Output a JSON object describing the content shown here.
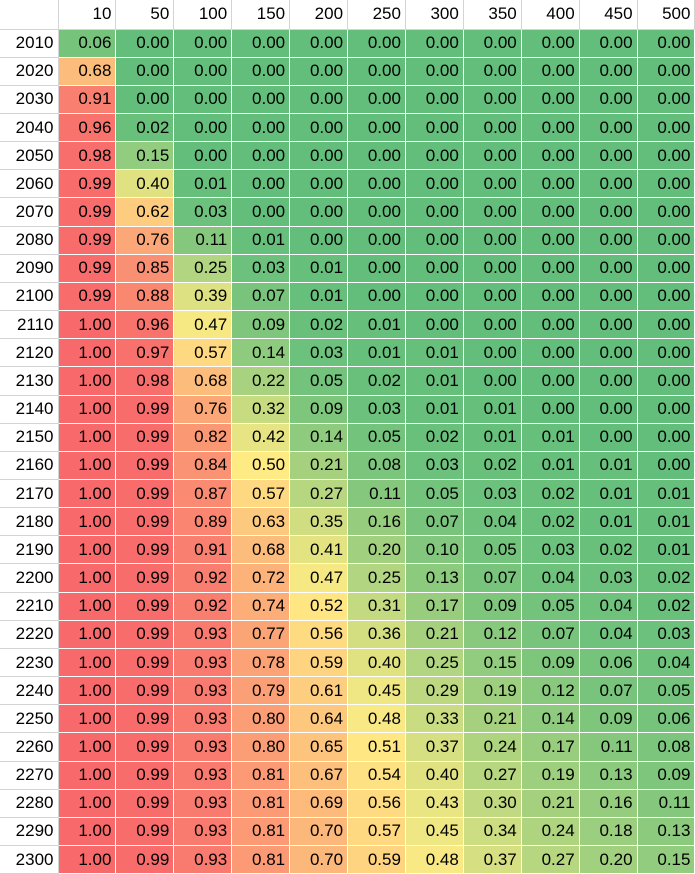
{
  "chart_data": {
    "type": "heatmap",
    "color_scale": {
      "low": "#63be7b",
      "mid": "#ffeb84",
      "high": "#f8696b"
    },
    "columns": [
      "10",
      "50",
      "100",
      "150",
      "200",
      "250",
      "300",
      "350",
      "400",
      "450",
      "500"
    ],
    "rows": [
      "2010",
      "2020",
      "2030",
      "2040",
      "2050",
      "2060",
      "2070",
      "2080",
      "2090",
      "2100",
      "2110",
      "2120",
      "2130",
      "2140",
      "2150",
      "2160",
      "2170",
      "2180",
      "2190",
      "2200",
      "2210",
      "2220",
      "2230",
      "2240",
      "2250",
      "2260",
      "2270",
      "2280",
      "2290",
      "2300"
    ],
    "values": [
      [
        "0.06",
        "0.00",
        "0.00",
        "0.00",
        "0.00",
        "0.00",
        "0.00",
        "0.00",
        "0.00",
        "0.00",
        "0.00"
      ],
      [
        "0.68",
        "0.00",
        "0.00",
        "0.00",
        "0.00",
        "0.00",
        "0.00",
        "0.00",
        "0.00",
        "0.00",
        "0.00"
      ],
      [
        "0.91",
        "0.00",
        "0.00",
        "0.00",
        "0.00",
        "0.00",
        "0.00",
        "0.00",
        "0.00",
        "0.00",
        "0.00"
      ],
      [
        "0.96",
        "0.02",
        "0.00",
        "0.00",
        "0.00",
        "0.00",
        "0.00",
        "0.00",
        "0.00",
        "0.00",
        "0.00"
      ],
      [
        "0.98",
        "0.15",
        "0.00",
        "0.00",
        "0.00",
        "0.00",
        "0.00",
        "0.00",
        "0.00",
        "0.00",
        "0.00"
      ],
      [
        "0.99",
        "0.40",
        "0.01",
        "0.00",
        "0.00",
        "0.00",
        "0.00",
        "0.00",
        "0.00",
        "0.00",
        "0.00"
      ],
      [
        "0.99",
        "0.62",
        "0.03",
        "0.00",
        "0.00",
        "0.00",
        "0.00",
        "0.00",
        "0.00",
        "0.00",
        "0.00"
      ],
      [
        "0.99",
        "0.76",
        "0.11",
        "0.01",
        "0.00",
        "0.00",
        "0.00",
        "0.00",
        "0.00",
        "0.00",
        "0.00"
      ],
      [
        "0.99",
        "0.85",
        "0.25",
        "0.03",
        "0.01",
        "0.00",
        "0.00",
        "0.00",
        "0.00",
        "0.00",
        "0.00"
      ],
      [
        "0.99",
        "0.88",
        "0.39",
        "0.07",
        "0.01",
        "0.00",
        "0.00",
        "0.00",
        "0.00",
        "0.00",
        "0.00"
      ],
      [
        "1.00",
        "0.96",
        "0.47",
        "0.09",
        "0.02",
        "0.01",
        "0.00",
        "0.00",
        "0.00",
        "0.00",
        "0.00"
      ],
      [
        "1.00",
        "0.97",
        "0.57",
        "0.14",
        "0.03",
        "0.01",
        "0.01",
        "0.00",
        "0.00",
        "0.00",
        "0.00"
      ],
      [
        "1.00",
        "0.98",
        "0.68",
        "0.22",
        "0.05",
        "0.02",
        "0.01",
        "0.00",
        "0.00",
        "0.00",
        "0.00"
      ],
      [
        "1.00",
        "0.99",
        "0.76",
        "0.32",
        "0.09",
        "0.03",
        "0.01",
        "0.01",
        "0.00",
        "0.00",
        "0.00"
      ],
      [
        "1.00",
        "0.99",
        "0.82",
        "0.42",
        "0.14",
        "0.05",
        "0.02",
        "0.01",
        "0.01",
        "0.00",
        "0.00"
      ],
      [
        "1.00",
        "0.99",
        "0.84",
        "0.50",
        "0.21",
        "0.08",
        "0.03",
        "0.02",
        "0.01",
        "0.01",
        "0.00"
      ],
      [
        "1.00",
        "0.99",
        "0.87",
        "0.57",
        "0.27",
        "0.11",
        "0.05",
        "0.03",
        "0.02",
        "0.01",
        "0.01"
      ],
      [
        "1.00",
        "0.99",
        "0.89",
        "0.63",
        "0.35",
        "0.16",
        "0.07",
        "0.04",
        "0.02",
        "0.01",
        "0.01"
      ],
      [
        "1.00",
        "0.99",
        "0.91",
        "0.68",
        "0.41",
        "0.20",
        "0.10",
        "0.05",
        "0.03",
        "0.02",
        "0.01"
      ],
      [
        "1.00",
        "0.99",
        "0.92",
        "0.72",
        "0.47",
        "0.25",
        "0.13",
        "0.07",
        "0.04",
        "0.03",
        "0.02"
      ],
      [
        "1.00",
        "0.99",
        "0.92",
        "0.74",
        "0.52",
        "0.31",
        "0.17",
        "0.09",
        "0.05",
        "0.04",
        "0.02"
      ],
      [
        "1.00",
        "0.99",
        "0.93",
        "0.77",
        "0.56",
        "0.36",
        "0.21",
        "0.12",
        "0.07",
        "0.04",
        "0.03"
      ],
      [
        "1.00",
        "0.99",
        "0.93",
        "0.78",
        "0.59",
        "0.40",
        "0.25",
        "0.15",
        "0.09",
        "0.06",
        "0.04"
      ],
      [
        "1.00",
        "0.99",
        "0.93",
        "0.79",
        "0.61",
        "0.45",
        "0.29",
        "0.19",
        "0.12",
        "0.07",
        "0.05"
      ],
      [
        "1.00",
        "0.99",
        "0.93",
        "0.80",
        "0.64",
        "0.48",
        "0.33",
        "0.21",
        "0.14",
        "0.09",
        "0.06"
      ],
      [
        "1.00",
        "0.99",
        "0.93",
        "0.80",
        "0.65",
        "0.51",
        "0.37",
        "0.24",
        "0.17",
        "0.11",
        "0.08"
      ],
      [
        "1.00",
        "0.99",
        "0.93",
        "0.81",
        "0.67",
        "0.54",
        "0.40",
        "0.27",
        "0.19",
        "0.13",
        "0.09"
      ],
      [
        "1.00",
        "0.99",
        "0.93",
        "0.81",
        "0.69",
        "0.56",
        "0.43",
        "0.30",
        "0.21",
        "0.16",
        "0.11"
      ],
      [
        "1.00",
        "0.99",
        "0.93",
        "0.81",
        "0.70",
        "0.57",
        "0.45",
        "0.34",
        "0.24",
        "0.18",
        "0.13"
      ],
      [
        "1.00",
        "0.99",
        "0.93",
        "0.81",
        "0.70",
        "0.59",
        "0.48",
        "0.37",
        "0.27",
        "0.20",
        "0.15"
      ]
    ]
  }
}
